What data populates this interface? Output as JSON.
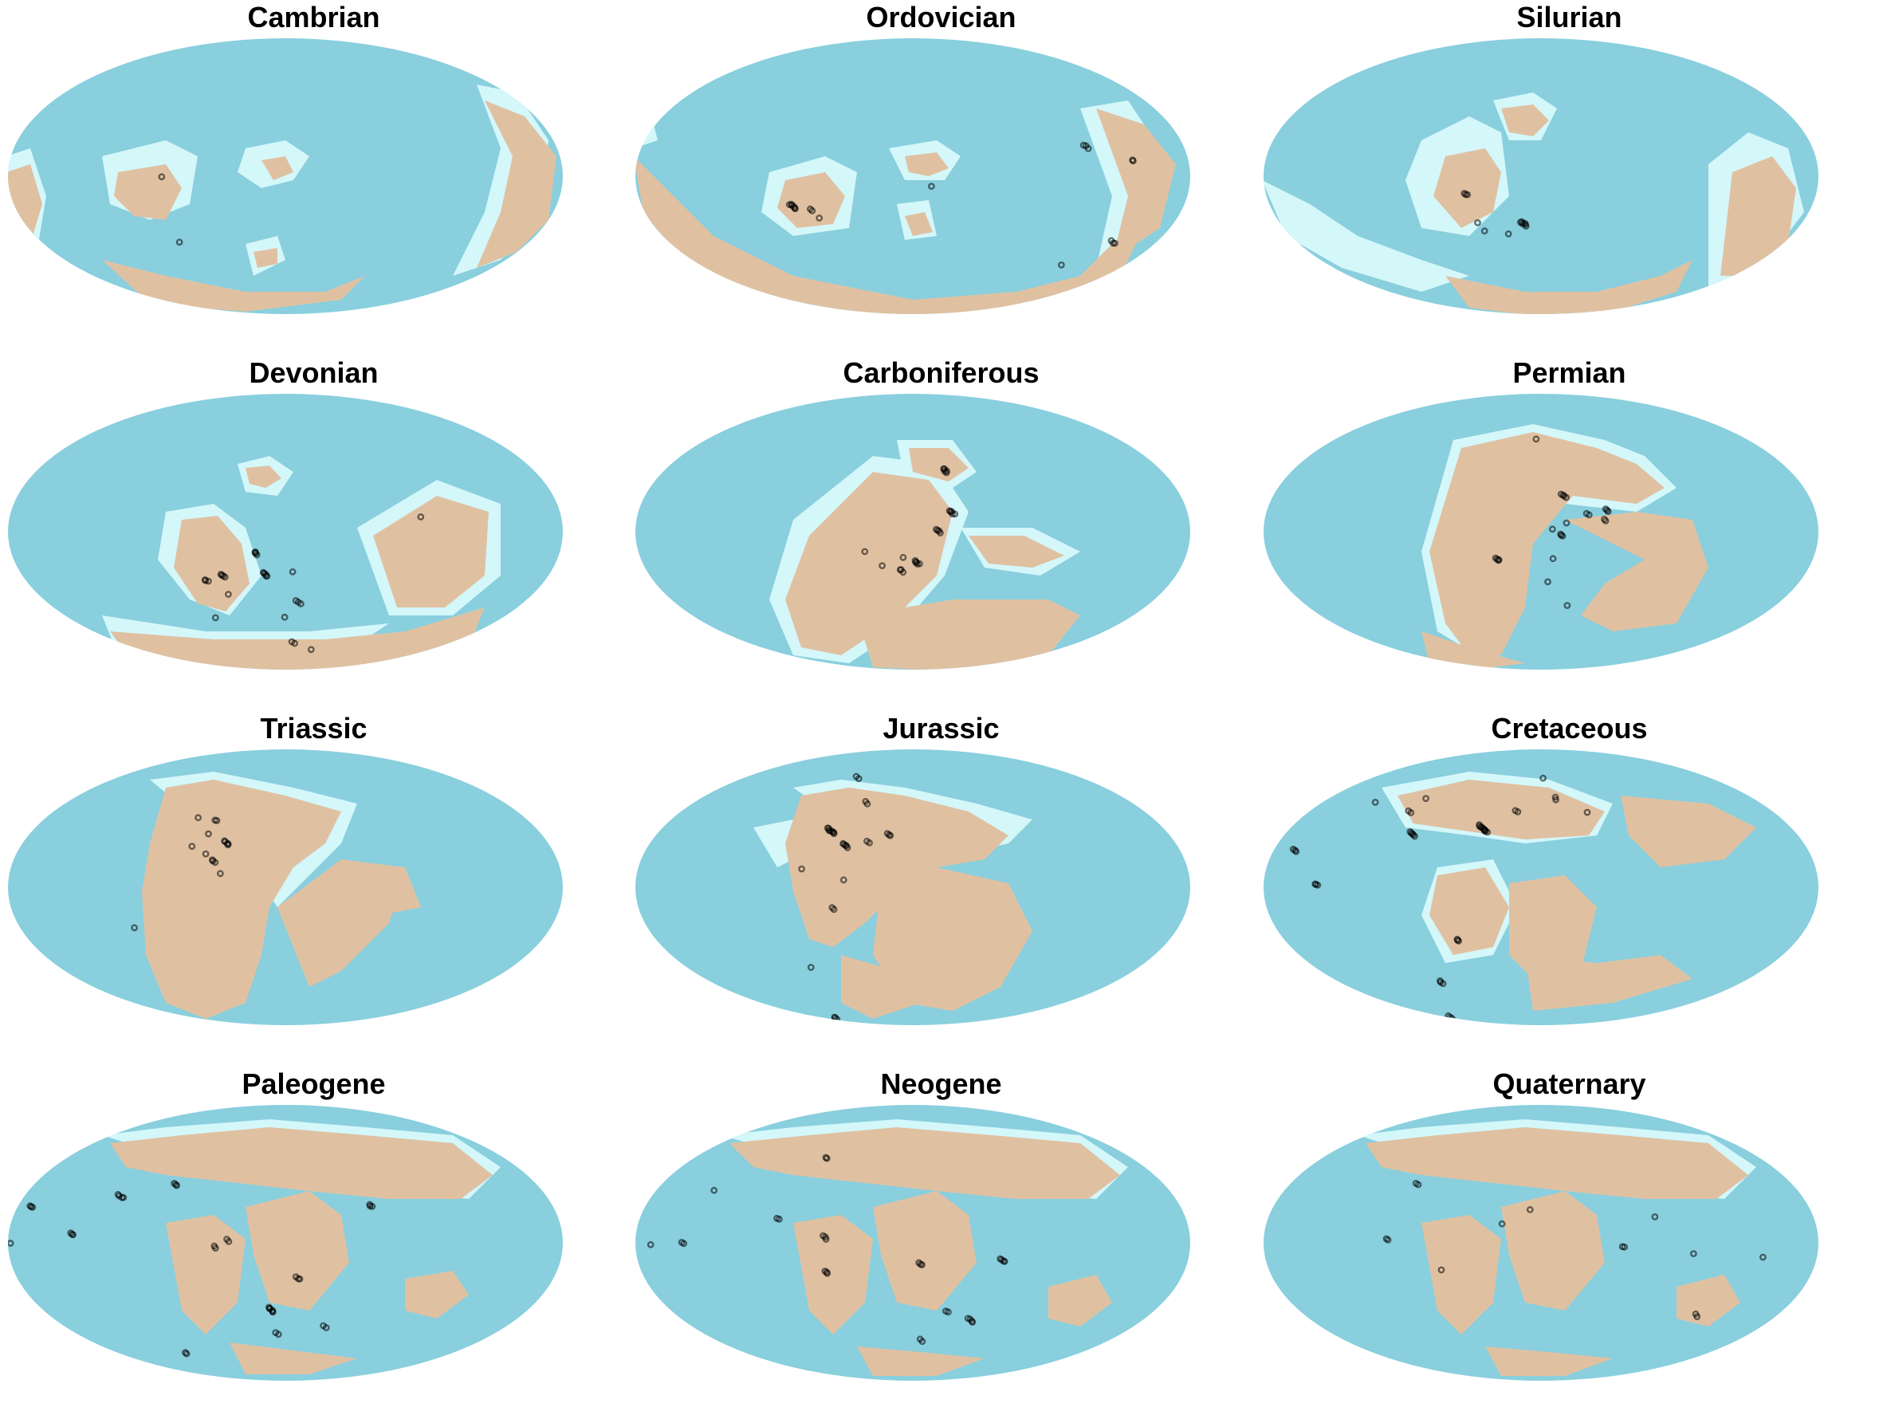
{
  "colors": {
    "ocean": "#89CFDE",
    "shelf": "#D4F7FA",
    "land": "#DFC1A2",
    "highland": "#C5A88C",
    "occurrence": "#000000"
  },
  "panels": [
    {
      "title": "Cambrian"
    },
    {
      "title": "Ordovician"
    },
    {
      "title": "Silurian"
    },
    {
      "title": "Devonian"
    },
    {
      "title": "Carboniferous"
    },
    {
      "title": "Permian"
    },
    {
      "title": "Triassic"
    },
    {
      "title": "Jurassic"
    },
    {
      "title": "Cretaceous"
    },
    {
      "title": "Paleogene"
    },
    {
      "title": "Neogene"
    },
    {
      "title": "Quaternary"
    }
  ]
}
